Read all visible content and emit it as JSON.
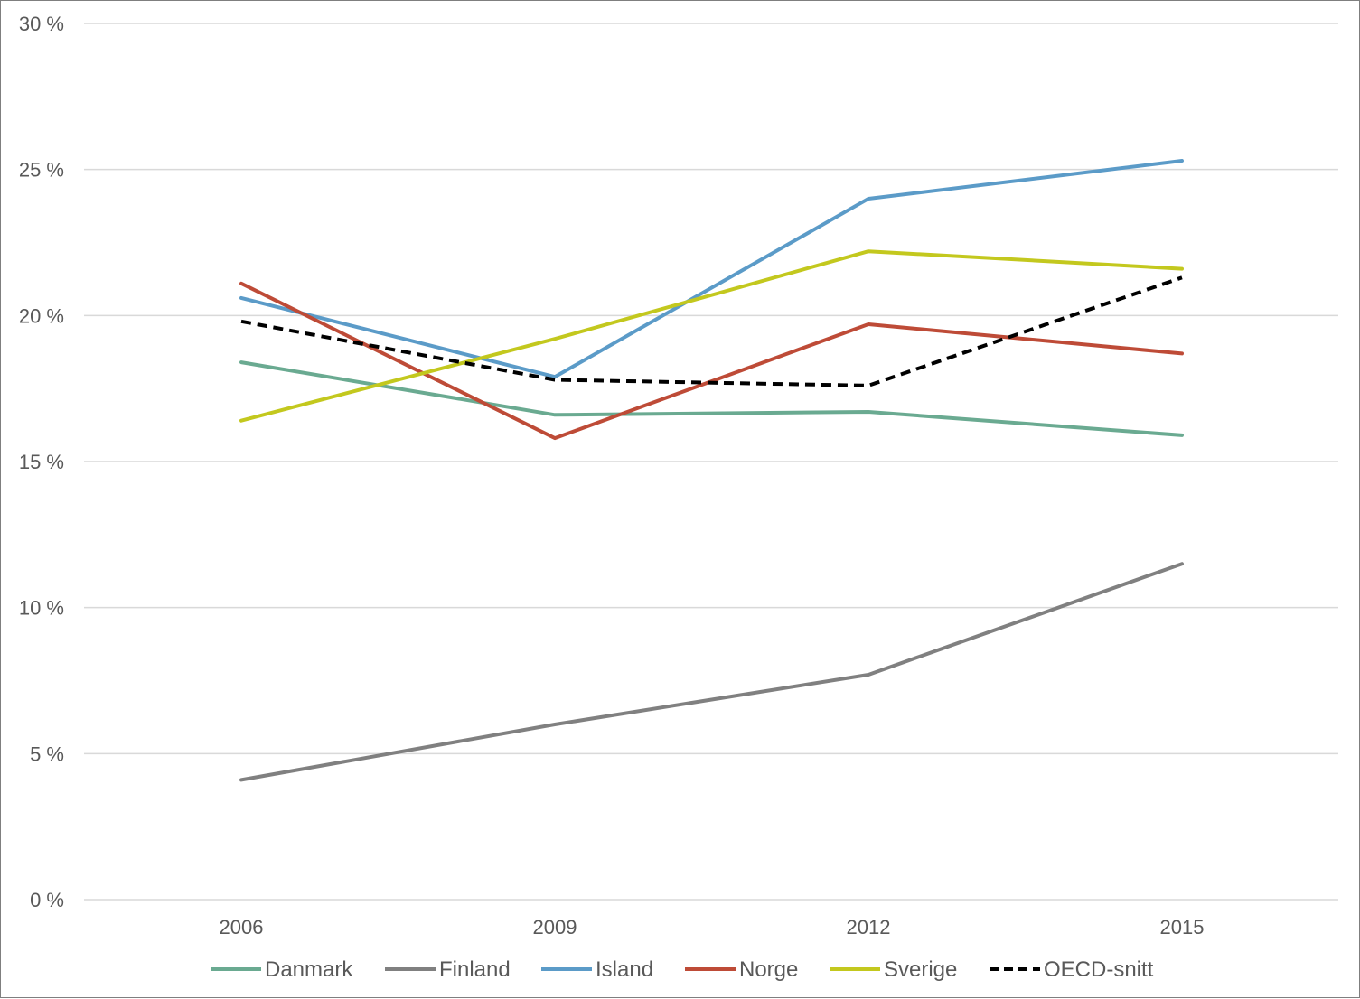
{
  "chart_data": {
    "type": "line",
    "title": "",
    "xlabel": "",
    "ylabel": "",
    "categories": [
      "2006",
      "2009",
      "2012",
      "2015"
    ],
    "ylim": [
      0,
      30
    ],
    "y_ticks": [
      0,
      5,
      10,
      15,
      20,
      25,
      30
    ],
    "y_tick_labels": [
      "0 %",
      "5 %",
      "10 %",
      "15 %",
      "20 %",
      "25 %",
      "30 %"
    ],
    "grid": "horizontal",
    "legend_position": "bottom",
    "series": [
      {
        "name": "Danmark",
        "values": [
          18.4,
          16.6,
          16.7,
          15.9
        ],
        "color": "#6aaa91",
        "dashed": false
      },
      {
        "name": "Finland",
        "values": [
          4.1,
          6.0,
          7.7,
          11.5
        ],
        "color": "#808080",
        "dashed": false
      },
      {
        "name": "Island",
        "values": [
          20.6,
          17.9,
          24.0,
          25.3
        ],
        "color": "#5b9bc8",
        "dashed": false
      },
      {
        "name": "Norge",
        "values": [
          21.1,
          15.8,
          19.7,
          18.7
        ],
        "color": "#be4b37",
        "dashed": false
      },
      {
        "name": "Sverige",
        "values": [
          16.4,
          19.2,
          22.2,
          21.6
        ],
        "color": "#c3c81e",
        "dashed": false
      },
      {
        "name": "OECD-snitt",
        "values": [
          19.8,
          17.8,
          17.6,
          21.3
        ],
        "color": "#000000",
        "dashed": true
      }
    ]
  }
}
